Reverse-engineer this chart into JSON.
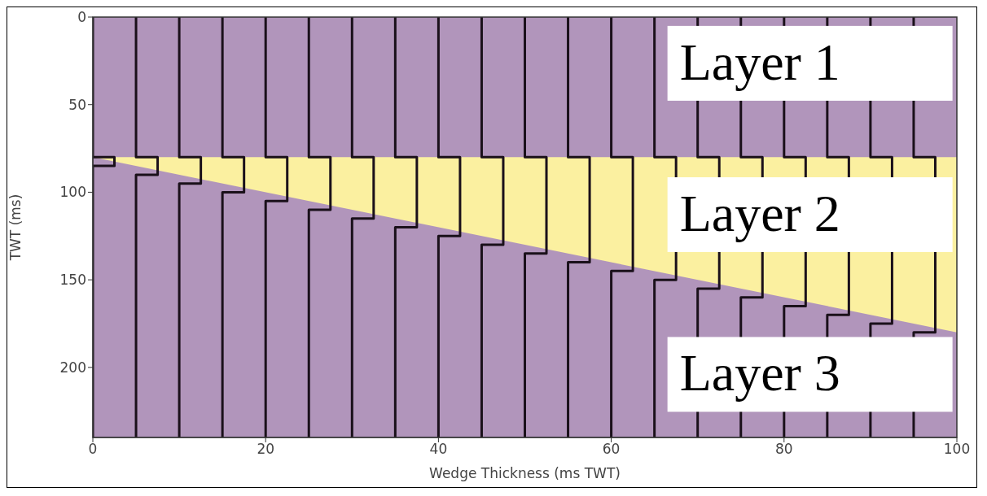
{
  "chart_data": {
    "type": "line",
    "xlabel": "Wedge Thickness (ms TWT)",
    "ylabel": "TWT (ms)",
    "xlim": [
      0,
      100
    ],
    "xticks": [
      0,
      20,
      40,
      60,
      80,
      100
    ],
    "ylim": [
      240,
      0
    ],
    "yticks": [
      0,
      50,
      100,
      150,
      200
    ],
    "grid": false,
    "marker": "none",
    "line_style": "solid",
    "annotations": [
      "Layer 1",
      "Layer 2",
      "Layer 3"
    ],
    "bands": [
      {
        "axis": "y",
        "from": 80,
        "to": 240,
        "color": "#b195bb"
      }
    ],
    "series": [
      {
        "type": "area",
        "color": "#fbf0a0",
        "x": [
          0,
          100
        ],
        "values": [
          80,
          180
        ]
      },
      {
        "type": "area",
        "color": "#b195bb",
        "x": [
          0,
          100
        ],
        "values": [
          80,
          80
        ]
      },
      {
        "color": "#1a101a",
        "x": [
          0,
          0,
          2.5,
          2.5,
          0,
          0
        ],
        "values": [
          0,
          80,
          80,
          85,
          85,
          240
        ]
      },
      {
        "color": "#1a101a",
        "x": [
          5,
          5,
          7.5,
          7.5,
          5,
          5
        ],
        "values": [
          0,
          80,
          80,
          90,
          90,
          240
        ]
      },
      {
        "color": "#1a101a",
        "x": [
          10,
          10,
          12.5,
          12.5,
          10,
          10
        ],
        "values": [
          0,
          80,
          80,
          95,
          95,
          240
        ]
      },
      {
        "color": "#1a101a",
        "x": [
          15,
          15,
          17.5,
          17.5,
          15,
          15
        ],
        "values": [
          0,
          80,
          80,
          100,
          100,
          240
        ]
      },
      {
        "color": "#1a101a",
        "x": [
          20,
          20,
          22.5,
          22.5,
          20,
          20
        ],
        "values": [
          0,
          80,
          80,
          105,
          105,
          240
        ]
      },
      {
        "color": "#1a101a",
        "x": [
          25,
          25,
          27.5,
          27.5,
          25,
          25
        ],
        "values": [
          0,
          80,
          80,
          110,
          110,
          240
        ]
      },
      {
        "color": "#1a101a",
        "x": [
          30,
          30,
          32.5,
          32.5,
          30,
          30
        ],
        "values": [
          0,
          80,
          80,
          115,
          115,
          240
        ]
      },
      {
        "color": "#1a101a",
        "x": [
          35,
          35,
          37.5,
          37.5,
          35,
          35
        ],
        "values": [
          0,
          80,
          80,
          120,
          120,
          240
        ]
      },
      {
        "color": "#1a101a",
        "x": [
          40,
          40,
          42.5,
          42.5,
          40,
          40
        ],
        "values": [
          0,
          80,
          80,
          125,
          125,
          240
        ]
      },
      {
        "color": "#1a101a",
        "x": [
          45,
          45,
          47.5,
          47.5,
          45,
          45
        ],
        "values": [
          0,
          80,
          80,
          130,
          130,
          240
        ]
      },
      {
        "color": "#1a101a",
        "x": [
          50,
          50,
          52.5,
          52.5,
          50,
          50
        ],
        "values": [
          0,
          80,
          80,
          135,
          135,
          240
        ]
      },
      {
        "color": "#1a101a",
        "x": [
          55,
          55,
          57.5,
          57.5,
          55,
          55
        ],
        "values": [
          0,
          80,
          80,
          140,
          140,
          240
        ]
      },
      {
        "color": "#1a101a",
        "x": [
          60,
          60,
          62.5,
          62.5,
          60,
          60
        ],
        "values": [
          0,
          80,
          80,
          145,
          145,
          240
        ]
      },
      {
        "color": "#1a101a",
        "x": [
          65,
          65,
          67.5,
          67.5,
          65,
          65
        ],
        "values": [
          0,
          80,
          80,
          150,
          150,
          240
        ]
      },
      {
        "color": "#1a101a",
        "x": [
          70,
          70,
          72.5,
          72.5,
          70,
          70
        ],
        "values": [
          0,
          80,
          80,
          155,
          155,
          240
        ]
      },
      {
        "color": "#1a101a",
        "x": [
          75,
          75,
          77.5,
          77.5,
          75,
          75
        ],
        "values": [
          0,
          80,
          80,
          160,
          160,
          240
        ]
      },
      {
        "color": "#1a101a",
        "x": [
          80,
          80,
          82.5,
          82.5,
          80,
          80
        ],
        "values": [
          0,
          80,
          80,
          165,
          165,
          240
        ]
      },
      {
        "color": "#1a101a",
        "x": [
          85,
          85,
          87.5,
          87.5,
          85,
          85
        ],
        "values": [
          0,
          80,
          80,
          170,
          170,
          240
        ]
      },
      {
        "color": "#1a101a",
        "x": [
          90,
          90,
          92.5,
          92.5,
          90,
          90
        ],
        "values": [
          0,
          80,
          80,
          175,
          175,
          240
        ]
      },
      {
        "color": "#1a101a",
        "x": [
          95,
          95,
          97.5,
          97.5,
          95,
          95
        ],
        "values": [
          0,
          80,
          80,
          180,
          180,
          240
        ]
      }
    ]
  }
}
